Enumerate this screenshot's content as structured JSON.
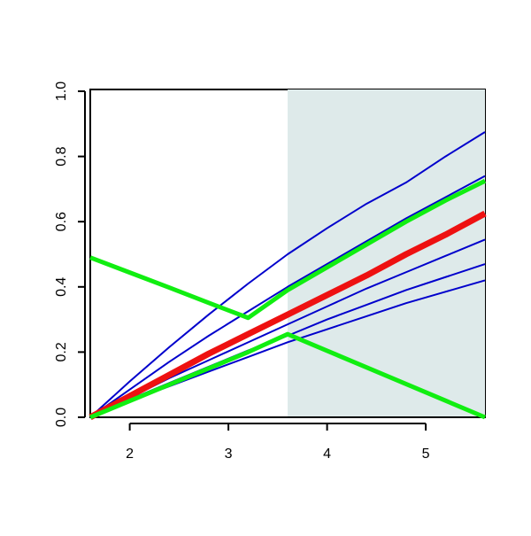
{
  "chart_data": {
    "type": "line",
    "x": [
      1.6,
      2.0,
      2.4,
      2.8,
      3.2,
      3.6,
      4.0,
      4.4,
      4.8,
      5.2,
      5.6
    ],
    "series": [
      {
        "color": "#0000cc",
        "line_width": 2,
        "values": [
          0,
          0.11,
          0.215,
          0.315,
          0.41,
          0.5,
          0.58,
          0.655,
          0.72,
          0.8,
          0.875
        ]
      },
      {
        "color": "#0000cc",
        "line_width": 2,
        "values": [
          0,
          0.085,
          0.17,
          0.25,
          0.325,
          0.4,
          0.47,
          0.54,
          0.61,
          0.675,
          0.74
        ]
      },
      {
        "color": "#0000cc",
        "line_width": 2,
        "values": [
          0,
          0.06,
          0.12,
          0.175,
          0.23,
          0.285,
          0.34,
          0.395,
          0.445,
          0.495,
          0.545
        ]
      },
      {
        "color": "#0000cc",
        "line_width": 2,
        "values": [
          0,
          0.055,
          0.105,
          0.155,
          0.205,
          0.25,
          0.3,
          0.345,
          0.39,
          0.43,
          0.47
        ]
      },
      {
        "color": "#0000cc",
        "line_width": 2,
        "values": [
          0,
          0.05,
          0.095,
          0.14,
          0.185,
          0.23,
          0.27,
          0.31,
          0.35,
          0.385,
          0.42
        ]
      },
      {
        "color": "#ee1111",
        "line_width": 7,
        "values": [
          0,
          0.065,
          0.13,
          0.195,
          0.255,
          0.315,
          0.375,
          0.435,
          0.5,
          0.56,
          0.625
        ]
      },
      {
        "color": "#11ee11",
        "line_width": 5,
        "values": [
          0.49,
          0.444,
          0.398,
          0.351,
          0.305,
          0.39,
          0.46,
          0.53,
          0.6,
          0.665,
          0.725
        ]
      },
      {
        "color": "#11ee11",
        "line_width": 5,
        "values": [
          0,
          0.05,
          0.1,
          0.15,
          0.2,
          0.255,
          0.204,
          0.153,
          0.102,
          0.051,
          0
        ]
      }
    ],
    "shaded_region": [
      3.6,
      5.6
    ],
    "shade_color": "#deeaea",
    "xlim": [
      1.6,
      5.6
    ],
    "ylim": [
      0,
      1
    ],
    "xticks": [
      2,
      3,
      4,
      5
    ],
    "yticks": [
      {
        "value": 0,
        "label": "0.0"
      },
      {
        "value": 0.2,
        "label": "0.2"
      },
      {
        "value": 0.4,
        "label": "0.4"
      },
      {
        "value": 0.6,
        "label": "0.6"
      },
      {
        "value": 0.8,
        "label": "0.8"
      },
      {
        "value": 1,
        "label": "1.0"
      }
    ]
  }
}
